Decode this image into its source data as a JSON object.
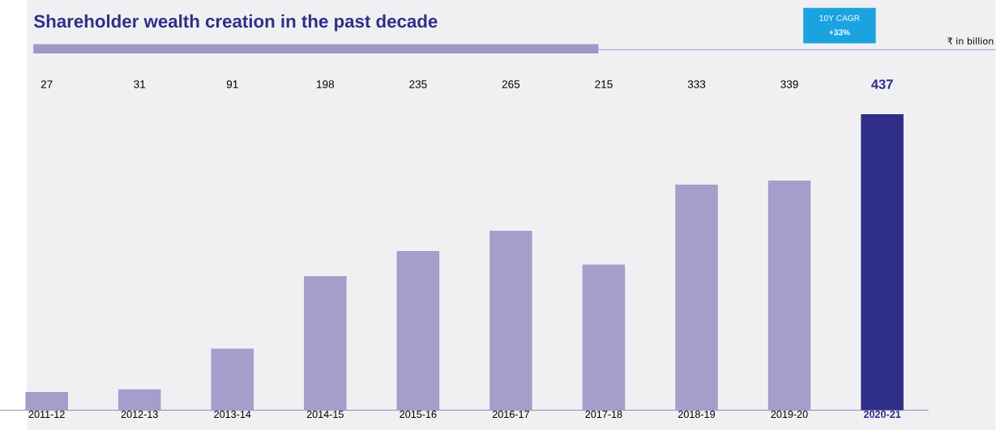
{
  "chart_data": {
    "type": "bar",
    "title": "Shareholder wealth creation in the past decade",
    "categories": [
      "2011-12",
      "2012-13",
      "2013-14",
      "2014-15",
      "2015-16",
      "2016-17",
      "2017-18",
      "2018-19",
      "2019-20",
      "2020-21"
    ],
    "values": [
      27,
      31,
      91,
      198,
      235,
      265,
      215,
      333,
      339,
      437
    ],
    "colors": [
      "#a59dca",
      "#a59dca",
      "#a59dca",
      "#a59dca",
      "#a59dca",
      "#a59dca",
      "#a59dca",
      "#a59dca",
      "#a59dca",
      "#2e2e86"
    ],
    "data_labels": true,
    "annotations": [
      "10Y CAGR",
      "+33%",
      "₹ in billion"
    ]
  }
}
